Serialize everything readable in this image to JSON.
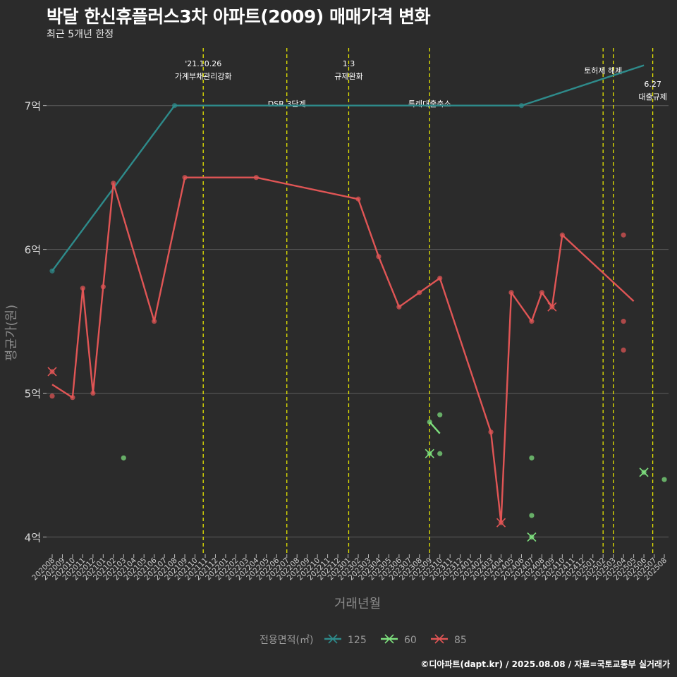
{
  "title": "박달 한신휴플러스3차 아파트(2009) 매매가격 변화",
  "subtitle": "최근 5개년 한정",
  "footer": "©디아파트(dapt.kr) / 2025.08.08 / 자료=국토교통부 실거래가",
  "chart_data": {
    "type": "line",
    "xlabel": "거래년월",
    "ylabel": "평균가(원)",
    "ylim": [
      3.88,
      7.43
    ],
    "y_ticks": [
      {
        "value": 4,
        "label": "4억"
      },
      {
        "value": 5,
        "label": "5억"
      },
      {
        "value": 6,
        "label": "6억"
      },
      {
        "value": 7,
        "label": "7억"
      }
    ],
    "x_start": "2020-08",
    "x_end": "2025-08",
    "x_tick_labels": [
      "202008",
      "202009",
      "202010",
      "202011",
      "202012",
      "202101",
      "202102",
      "202103",
      "202104",
      "202105",
      "202106",
      "202107",
      "202108",
      "202109",
      "202110",
      "202111",
      "202112",
      "202201",
      "202202",
      "202203",
      "202204",
      "202205",
      "202206",
      "202207",
      "202208",
      "202209",
      "202210",
      "202211",
      "202212",
      "202301",
      "202302",
      "202303",
      "202304",
      "202305",
      "202306",
      "202307",
      "202308",
      "202309",
      "202310",
      "202311",
      "202312",
      "202401",
      "202402",
      "202403",
      "202404",
      "202405",
      "202406",
      "202407",
      "202408",
      "202409",
      "202410",
      "202411",
      "202412",
      "202501",
      "202502",
      "202503",
      "202504",
      "202505",
      "202506",
      "202507",
      "202508"
    ],
    "legend_title": "전용면적(㎡)",
    "legend_position": "bottom",
    "grid": true,
    "events": [
      {
        "date": "2021-10-26",
        "label_lines": [
          "'21.10.26",
          "가계부채관리강화"
        ],
        "row": "top"
      },
      {
        "date": "2022-07",
        "label_lines": [
          "DSR 3단계"
        ],
        "row": "bottom"
      },
      {
        "date": "2023-01-03",
        "label_lines": [
          "1.3",
          "규제완화"
        ],
        "row": "top"
      },
      {
        "date": "2023-09",
        "label_lines": [
          "특례대출축소"
        ],
        "row": "bottom"
      },
      {
        "date": "2025-02",
        "label_lines": [
          "토허제 해제"
        ],
        "row": "top"
      },
      {
        "date": "2025-03",
        "label_lines": [],
        "row": "top"
      },
      {
        "date": "2025-06-27",
        "label_lines": [
          "6.27",
          "대출규제"
        ],
        "row": "mid"
      }
    ],
    "series": [
      {
        "name": "125",
        "color": "#2e8b8b",
        "line": [
          [
            "2020-08",
            5.85
          ],
          [
            "2021-08",
            7.0
          ],
          [
            "2024-06",
            7.0
          ],
          [
            "2025-06",
            7.28
          ]
        ],
        "points": [
          [
            "2020-08",
            5.85
          ],
          [
            "2021-08",
            7.0
          ],
          [
            "2024-06",
            7.0
          ]
        ],
        "cross_points": []
      },
      {
        "name": "60",
        "color": "#7ee07e",
        "line": [
          [
            "2023-09",
            4.8
          ],
          [
            "2023-10",
            4.72
          ]
        ],
        "points": [
          [
            "2021-03",
            4.55
          ],
          [
            "2023-09",
            4.8
          ],
          [
            "2023-10",
            4.85
          ],
          [
            "2023-10",
            4.58
          ],
          [
            "2024-07",
            4.55
          ],
          [
            "2024-07",
            4.15
          ],
          [
            "2025-08",
            4.4
          ]
        ],
        "cross_points": [
          [
            "2023-09",
            4.58
          ],
          [
            "2024-07",
            4.0
          ],
          [
            "2025-06",
            4.45
          ]
        ]
      },
      {
        "name": "85",
        "color": "#e05555",
        "line": [
          [
            "2020-08",
            5.06
          ],
          [
            "2020-10",
            4.97
          ],
          [
            "2020-11",
            5.73
          ],
          [
            "2020-12",
            5.0
          ],
          [
            "2021-01",
            5.74
          ],
          [
            "2021-02",
            6.46
          ],
          [
            "2021-06",
            5.5
          ],
          [
            "2021-09",
            6.5
          ],
          [
            "2022-04",
            6.5
          ],
          [
            "2023-02",
            6.35
          ],
          [
            "2023-04",
            5.95
          ],
          [
            "2023-06",
            5.6
          ],
          [
            "2023-08",
            5.7
          ],
          [
            "2023-10",
            5.8
          ],
          [
            "2024-03",
            4.73
          ],
          [
            "2024-04",
            4.1
          ],
          [
            "2024-05",
            5.7
          ],
          [
            "2024-07",
            5.5
          ],
          [
            "2024-08",
            5.7
          ],
          [
            "2024-09",
            5.6
          ],
          [
            "2024-10",
            6.1
          ],
          [
            "2025-05",
            5.64
          ]
        ],
        "points": [
          [
            "2020-08",
            4.98
          ],
          [
            "2020-10",
            4.97
          ],
          [
            "2020-11",
            5.73
          ],
          [
            "2020-12",
            5.0
          ],
          [
            "2021-01",
            5.74
          ],
          [
            "2021-02",
            6.46
          ],
          [
            "2021-06",
            5.5
          ],
          [
            "2021-09",
            6.5
          ],
          [
            "2022-04",
            6.5
          ],
          [
            "2023-02",
            6.35
          ],
          [
            "2023-04",
            5.95
          ],
          [
            "2023-06",
            5.6
          ],
          [
            "2023-08",
            5.7
          ],
          [
            "2023-10",
            5.8
          ],
          [
            "2024-03",
            4.73
          ],
          [
            "2024-05",
            5.7
          ],
          [
            "2024-07",
            5.5
          ],
          [
            "2024-08",
            5.7
          ],
          [
            "2024-10",
            6.1
          ],
          [
            "2025-04",
            6.1
          ],
          [
            "2025-04",
            5.5
          ],
          [
            "2025-04",
            5.3
          ]
        ],
        "cross_points": [
          [
            "2020-08",
            5.15
          ],
          [
            "2024-04",
            4.1
          ],
          [
            "2024-09",
            5.6
          ]
        ]
      }
    ]
  }
}
